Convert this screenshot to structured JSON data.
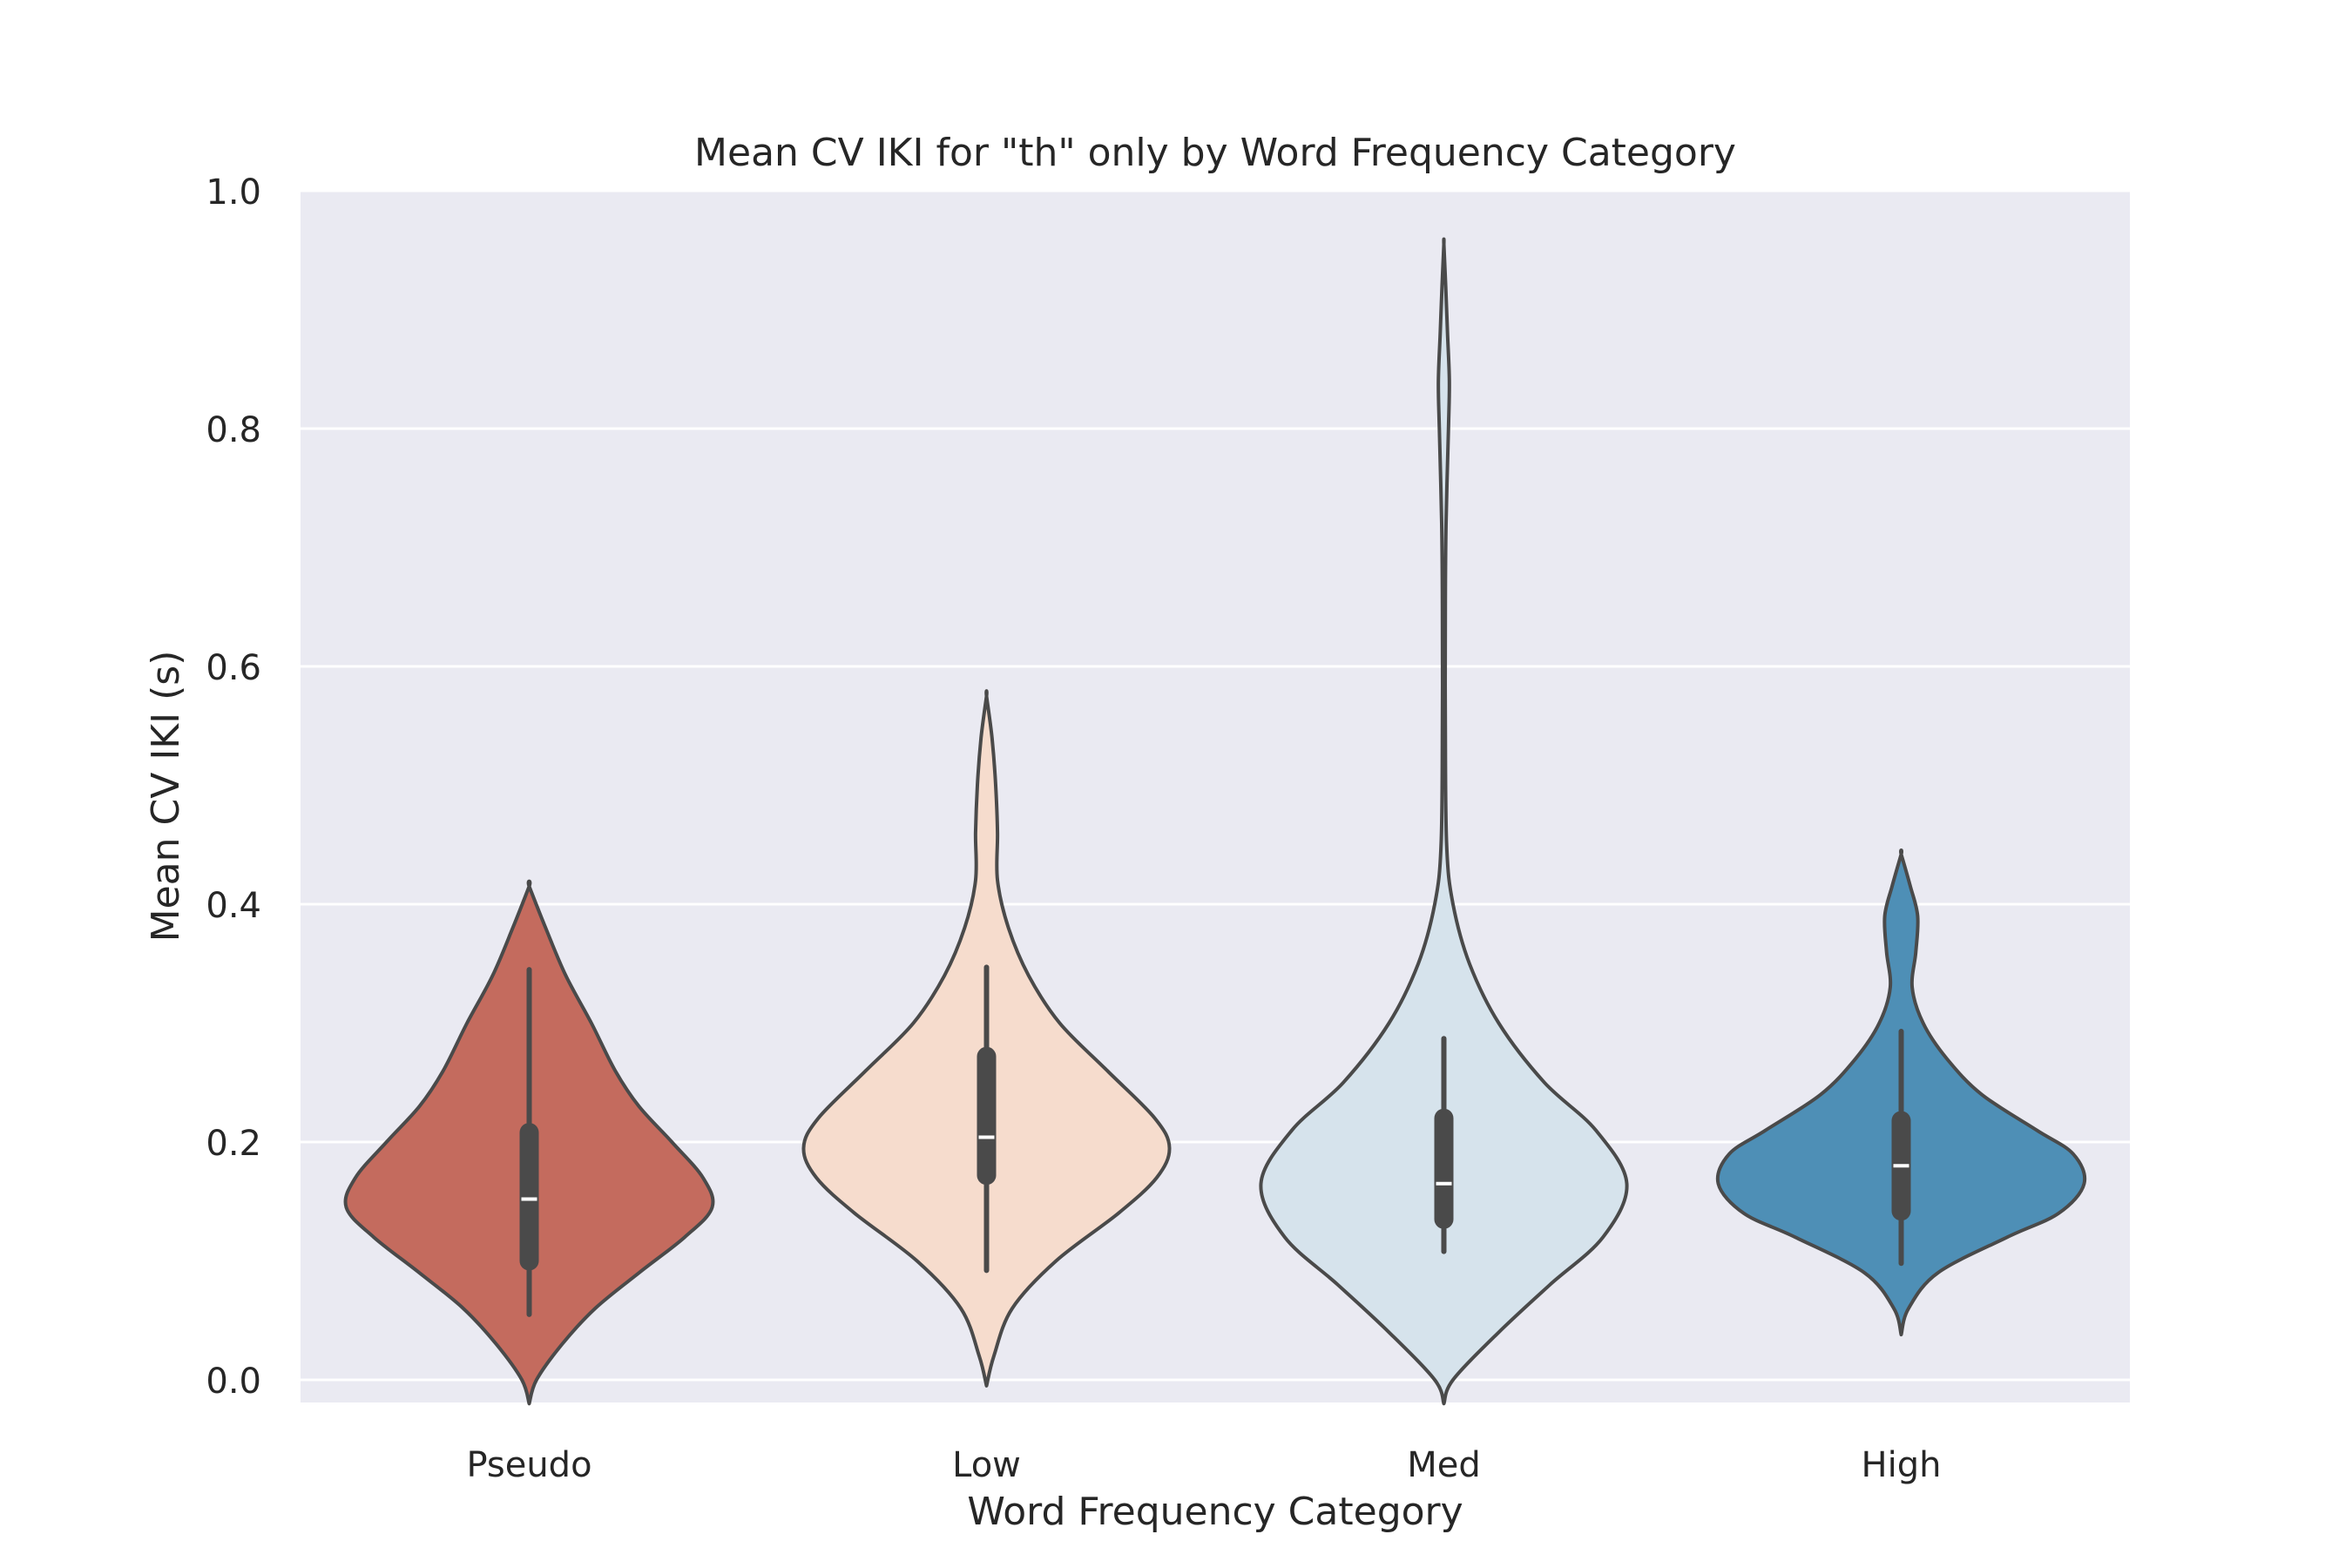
{
  "chart_data": {
    "type": "violin",
    "title": "Mean CV IKI for \"th\" only by Word Frequency Category",
    "xlabel": "Word Frequency Category",
    "ylabel": "Mean CV IKI (s)",
    "ylim": [
      -0.027,
      1.0
    ],
    "yticks": [
      0.0,
      0.2,
      0.4,
      0.6,
      0.8,
      1.0
    ],
    "ytick_labels": [
      "0.0",
      "0.2",
      "0.4",
      "0.6",
      "0.8",
      "1.0"
    ],
    "grid": true,
    "categories": [
      "Pseudo",
      "Low",
      "Med",
      "High"
    ],
    "series": [
      {
        "category": "Pseudo",
        "color": "#c46b5e",
        "range": [
          -0.02,
          0.415
        ],
        "whisker": [
          0.055,
          0.345
        ],
        "q1": 0.1,
        "median": 0.152,
        "q3": 0.208,
        "density": [
          [
            -0.02,
            0.0
          ],
          [
            0.0,
            0.04
          ],
          [
            0.03,
            0.18
          ],
          [
            0.06,
            0.36
          ],
          [
            0.09,
            0.6
          ],
          [
            0.12,
            0.85
          ],
          [
            0.145,
            1.0
          ],
          [
            0.17,
            0.95
          ],
          [
            0.2,
            0.78
          ],
          [
            0.23,
            0.6
          ],
          [
            0.26,
            0.47
          ],
          [
            0.3,
            0.34
          ],
          [
            0.34,
            0.2
          ],
          [
            0.38,
            0.09
          ],
          [
            0.415,
            0.0
          ]
        ]
      },
      {
        "category": "Low",
        "color": "#f6dccd",
        "range": [
          -0.005,
          0.575
        ],
        "whisker": [
          0.092,
          0.347
        ],
        "q1": 0.172,
        "median": 0.204,
        "q3": 0.272,
        "density": [
          [
            -0.005,
            0.0
          ],
          [
            0.02,
            0.04
          ],
          [
            0.06,
            0.14
          ],
          [
            0.1,
            0.38
          ],
          [
            0.14,
            0.72
          ],
          [
            0.17,
            0.93
          ],
          [
            0.195,
            1.0
          ],
          [
            0.22,
            0.92
          ],
          [
            0.26,
            0.66
          ],
          [
            0.3,
            0.4
          ],
          [
            0.34,
            0.23
          ],
          [
            0.38,
            0.12
          ],
          [
            0.42,
            0.06
          ],
          [
            0.46,
            0.06
          ],
          [
            0.5,
            0.05
          ],
          [
            0.54,
            0.03
          ],
          [
            0.575,
            0.0
          ]
        ]
      },
      {
        "category": "Med",
        "color": "#d6e3ec",
        "range": [
          -0.02,
          0.955
        ],
        "whisker": [
          0.108,
          0.287
        ],
        "q1": 0.135,
        "median": 0.165,
        "q3": 0.22,
        "density": [
          [
            -0.02,
            0.0
          ],
          [
            0.0,
            0.05
          ],
          [
            0.04,
            0.3
          ],
          [
            0.08,
            0.58
          ],
          [
            0.12,
            0.87
          ],
          [
            0.165,
            1.0
          ],
          [
            0.21,
            0.83
          ],
          [
            0.25,
            0.55
          ],
          [
            0.3,
            0.3
          ],
          [
            0.35,
            0.14
          ],
          [
            0.4,
            0.05
          ],
          [
            0.45,
            0.015
          ],
          [
            0.55,
            0.008
          ],
          [
            0.65,
            0.008
          ],
          [
            0.72,
            0.012
          ],
          [
            0.8,
            0.025
          ],
          [
            0.84,
            0.03
          ],
          [
            0.88,
            0.02
          ],
          [
            0.92,
            0.01
          ],
          [
            0.955,
            0.0
          ]
        ]
      },
      {
        "category": "High",
        "color": "#4e8fb6",
        "range": [
          0.038,
          0.442
        ],
        "whisker": [
          0.098,
          0.293
        ],
        "q1": 0.142,
        "median": 0.18,
        "q3": 0.218,
        "density": [
          [
            0.038,
            0.0
          ],
          [
            0.06,
            0.04
          ],
          [
            0.09,
            0.2
          ],
          [
            0.12,
            0.58
          ],
          [
            0.14,
            0.86
          ],
          [
            0.165,
            1.0
          ],
          [
            0.19,
            0.94
          ],
          [
            0.21,
            0.74
          ],
          [
            0.24,
            0.44
          ],
          [
            0.27,
            0.25
          ],
          [
            0.3,
            0.12
          ],
          [
            0.33,
            0.06
          ],
          [
            0.36,
            0.08
          ],
          [
            0.39,
            0.09
          ],
          [
            0.415,
            0.05
          ],
          [
            0.442,
            0.0
          ]
        ]
      }
    ]
  }
}
